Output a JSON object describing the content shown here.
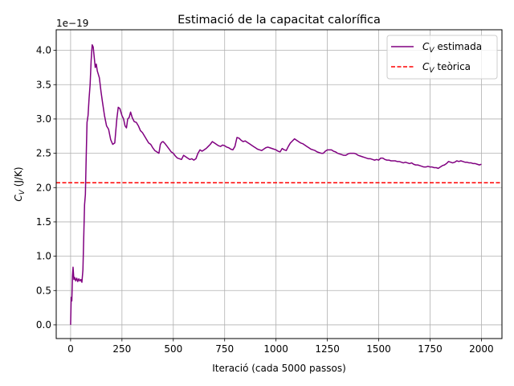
{
  "chart_data": {
    "type": "line",
    "title": "Estimació de la capacitat calorífica",
    "xlabel": "Iteració (cada 5000 passos)",
    "ylabel_symbol": "C",
    "ylabel_subscript": "V",
    "ylabel_unit": " (J/K)",
    "y_scale_label": "1e−19",
    "xlim": [
      -70,
      2100
    ],
    "ylim": [
      -0.2,
      4.3
    ],
    "x_ticks": [
      0,
      250,
      500,
      750,
      1000,
      1250,
      1500,
      1750,
      2000
    ],
    "x_tick_labels": [
      "0",
      "250",
      "500",
      "750",
      "1000",
      "1250",
      "1500",
      "1750",
      "2000"
    ],
    "y_ticks": [
      0.0,
      0.5,
      1.0,
      1.5,
      2.0,
      2.5,
      3.0,
      3.5,
      4.0
    ],
    "y_tick_labels": [
      "0.0",
      "0.5",
      "1.0",
      "1.5",
      "2.0",
      "2.5",
      "3.0",
      "3.5",
      "4.0"
    ],
    "grid": true,
    "legend_position": "top-right",
    "series": [
      {
        "name_symbol": "C",
        "name_subscript": "V",
        "name_suffix": " estimada",
        "color": "#800080",
        "style": "solid",
        "points": [
          [
            0,
            0.0
          ],
          [
            3,
            0.4
          ],
          [
            6,
            0.35
          ],
          [
            9,
            0.7
          ],
          [
            12,
            0.84
          ],
          [
            16,
            0.66
          ],
          [
            20,
            0.69
          ],
          [
            25,
            0.64
          ],
          [
            30,
            0.68
          ],
          [
            35,
            0.63
          ],
          [
            40,
            0.67
          ],
          [
            45,
            0.64
          ],
          [
            50,
            0.66
          ],
          [
            55,
            0.62
          ],
          [
            60,
            0.8
          ],
          [
            65,
            1.4
          ],
          [
            68,
            1.75
          ],
          [
            72,
            1.9
          ],
          [
            76,
            2.45
          ],
          [
            80,
            2.95
          ],
          [
            85,
            3.05
          ],
          [
            90,
            3.3
          ],
          [
            95,
            3.5
          ],
          [
            100,
            3.85
          ],
          [
            105,
            4.08
          ],
          [
            110,
            4.05
          ],
          [
            115,
            3.9
          ],
          [
            120,
            3.75
          ],
          [
            125,
            3.8
          ],
          [
            130,
            3.7
          ],
          [
            135,
            3.65
          ],
          [
            140,
            3.6
          ],
          [
            148,
            3.4
          ],
          [
            155,
            3.25
          ],
          [
            165,
            3.05
          ],
          [
            175,
            2.9
          ],
          [
            185,
            2.85
          ],
          [
            195,
            2.7
          ],
          [
            205,
            2.63
          ],
          [
            215,
            2.65
          ],
          [
            225,
            3.0
          ],
          [
            232,
            3.17
          ],
          [
            240,
            3.15
          ],
          [
            250,
            3.05
          ],
          [
            258,
            3.0
          ],
          [
            265,
            2.9
          ],
          [
            272,
            2.87
          ],
          [
            278,
            3.0
          ],
          [
            285,
            3.02
          ],
          [
            292,
            3.1
          ],
          [
            300,
            3.02
          ],
          [
            310,
            2.96
          ],
          [
            320,
            2.95
          ],
          [
            330,
            2.9
          ],
          [
            340,
            2.83
          ],
          [
            350,
            2.8
          ],
          [
            360,
            2.75
          ],
          [
            370,
            2.7
          ],
          [
            380,
            2.65
          ],
          [
            390,
            2.63
          ],
          [
            400,
            2.58
          ],
          [
            410,
            2.54
          ],
          [
            420,
            2.52
          ],
          [
            430,
            2.5
          ],
          [
            437,
            2.63
          ],
          [
            443,
            2.66
          ],
          [
            450,
            2.67
          ],
          [
            460,
            2.64
          ],
          [
            470,
            2.6
          ],
          [
            480,
            2.56
          ],
          [
            490,
            2.52
          ],
          [
            500,
            2.5
          ],
          [
            510,
            2.46
          ],
          [
            520,
            2.43
          ],
          [
            530,
            2.42
          ],
          [
            540,
            2.41
          ],
          [
            550,
            2.47
          ],
          [
            560,
            2.45
          ],
          [
            570,
            2.43
          ],
          [
            580,
            2.41
          ],
          [
            590,
            2.42
          ],
          [
            600,
            2.4
          ],
          [
            610,
            2.42
          ],
          [
            620,
            2.5
          ],
          [
            630,
            2.55
          ],
          [
            640,
            2.53
          ],
          [
            650,
            2.55
          ],
          [
            660,
            2.57
          ],
          [
            670,
            2.6
          ],
          [
            680,
            2.63
          ],
          [
            690,
            2.67
          ],
          [
            700,
            2.65
          ],
          [
            710,
            2.63
          ],
          [
            720,
            2.61
          ],
          [
            730,
            2.6
          ],
          [
            740,
            2.62
          ],
          [
            750,
            2.61
          ],
          [
            760,
            2.59
          ],
          [
            770,
            2.58
          ],
          [
            780,
            2.56
          ],
          [
            790,
            2.55
          ],
          [
            800,
            2.6
          ],
          [
            810,
            2.73
          ],
          [
            820,
            2.72
          ],
          [
            830,
            2.69
          ],
          [
            840,
            2.67
          ],
          [
            850,
            2.68
          ],
          [
            860,
            2.66
          ],
          [
            870,
            2.64
          ],
          [
            880,
            2.62
          ],
          [
            890,
            2.6
          ],
          [
            900,
            2.58
          ],
          [
            910,
            2.56
          ],
          [
            920,
            2.55
          ],
          [
            930,
            2.54
          ],
          [
            940,
            2.56
          ],
          [
            950,
            2.58
          ],
          [
            960,
            2.59
          ],
          [
            970,
            2.58
          ],
          [
            980,
            2.57
          ],
          [
            990,
            2.56
          ],
          [
            1000,
            2.55
          ],
          [
            1010,
            2.53
          ],
          [
            1020,
            2.52
          ],
          [
            1030,
            2.57
          ],
          [
            1040,
            2.55
          ],
          [
            1050,
            2.54
          ],
          [
            1060,
            2.6
          ],
          [
            1070,
            2.65
          ],
          [
            1080,
            2.68
          ],
          [
            1090,
            2.71
          ],
          [
            1100,
            2.69
          ],
          [
            1110,
            2.67
          ],
          [
            1120,
            2.65
          ],
          [
            1130,
            2.64
          ],
          [
            1140,
            2.62
          ],
          [
            1150,
            2.6
          ],
          [
            1160,
            2.58
          ],
          [
            1170,
            2.56
          ],
          [
            1180,
            2.55
          ],
          [
            1190,
            2.54
          ],
          [
            1200,
            2.52
          ],
          [
            1210,
            2.51
          ],
          [
            1220,
            2.5
          ],
          [
            1230,
            2.5
          ],
          [
            1240,
            2.53
          ],
          [
            1250,
            2.55
          ],
          [
            1260,
            2.55
          ],
          [
            1270,
            2.55
          ],
          [
            1280,
            2.53
          ],
          [
            1290,
            2.52
          ],
          [
            1300,
            2.5
          ],
          [
            1310,
            2.49
          ],
          [
            1320,
            2.48
          ],
          [
            1330,
            2.47
          ],
          [
            1340,
            2.47
          ],
          [
            1350,
            2.49
          ],
          [
            1360,
            2.5
          ],
          [
            1370,
            2.5
          ],
          [
            1380,
            2.5
          ],
          [
            1390,
            2.49
          ],
          [
            1400,
            2.47
          ],
          [
            1410,
            2.46
          ],
          [
            1420,
            2.45
          ],
          [
            1430,
            2.44
          ],
          [
            1440,
            2.43
          ],
          [
            1450,
            2.42
          ],
          [
            1460,
            2.42
          ],
          [
            1470,
            2.41
          ],
          [
            1480,
            2.4
          ],
          [
            1490,
            2.41
          ],
          [
            1500,
            2.4
          ],
          [
            1510,
            2.43
          ],
          [
            1520,
            2.43
          ],
          [
            1530,
            2.41
          ],
          [
            1540,
            2.4
          ],
          [
            1550,
            2.4
          ],
          [
            1560,
            2.39
          ],
          [
            1570,
            2.39
          ],
          [
            1580,
            2.39
          ],
          [
            1590,
            2.38
          ],
          [
            1600,
            2.38
          ],
          [
            1610,
            2.37
          ],
          [
            1620,
            2.36
          ],
          [
            1630,
            2.37
          ],
          [
            1640,
            2.36
          ],
          [
            1650,
            2.35
          ],
          [
            1660,
            2.36
          ],
          [
            1670,
            2.34
          ],
          [
            1680,
            2.33
          ],
          [
            1690,
            2.33
          ],
          [
            1700,
            2.32
          ],
          [
            1710,
            2.31
          ],
          [
            1720,
            2.3
          ],
          [
            1730,
            2.3
          ],
          [
            1740,
            2.31
          ],
          [
            1750,
            2.3
          ],
          [
            1760,
            2.3
          ],
          [
            1770,
            2.29
          ],
          [
            1780,
            2.29
          ],
          [
            1790,
            2.28
          ],
          [
            1800,
            2.3
          ],
          [
            1810,
            2.32
          ],
          [
            1820,
            2.33
          ],
          [
            1830,
            2.35
          ],
          [
            1840,
            2.38
          ],
          [
            1850,
            2.37
          ],
          [
            1860,
            2.36
          ],
          [
            1870,
            2.37
          ],
          [
            1880,
            2.39
          ],
          [
            1890,
            2.38
          ],
          [
            1900,
            2.39
          ],
          [
            1910,
            2.38
          ],
          [
            1920,
            2.37
          ],
          [
            1930,
            2.37
          ],
          [
            1940,
            2.36
          ],
          [
            1950,
            2.36
          ],
          [
            1960,
            2.35
          ],
          [
            1970,
            2.35
          ],
          [
            1980,
            2.34
          ],
          [
            1990,
            2.33
          ],
          [
            2000,
            2.34
          ]
        ]
      },
      {
        "name_symbol": "C",
        "name_subscript": "V",
        "name_suffix": " teòrica",
        "color": "#ff0000",
        "style": "dashed",
        "hline": 2.07
      }
    ]
  }
}
